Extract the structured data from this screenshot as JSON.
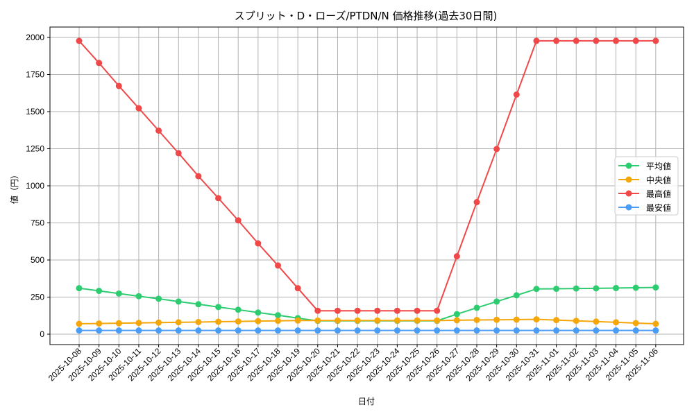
{
  "chart_data": {
    "type": "line",
    "title": "スプリット・D・ローズ/PTDN/N 価格推移(過去30日間)",
    "xlabel": "日付",
    "ylabel": "値（円）",
    "ylim": [
      -70,
      2070
    ],
    "yticks": [
      0,
      250,
      500,
      750,
      1000,
      1250,
      1500,
      1750,
      2000
    ],
    "grid": true,
    "legend_position": "center right",
    "categories": [
      "2025-10-08",
      "2025-10-09",
      "2025-10-10",
      "2025-10-11",
      "2025-10-12",
      "2025-10-13",
      "2025-10-14",
      "2025-10-15",
      "2025-10-16",
      "2025-10-17",
      "2025-10-18",
      "2025-10-19",
      "2025-10-20",
      "2025-10-21",
      "2025-10-22",
      "2025-10-23",
      "2025-10-24",
      "2025-10-25",
      "2025-10-26",
      "2025-10-27",
      "2025-10-28",
      "2025-10-29",
      "2025-10-30",
      "2025-10-31",
      "2025-11-01",
      "2025-11-02",
      "2025-11-03",
      "2025-11-04",
      "2025-11-05",
      "2025-11-06"
    ],
    "series": [
      {
        "name": "平均値",
        "color": "#2ecc71",
        "values": [
          310,
          292,
          274,
          256,
          239,
          220,
          202,
          183,
          165,
          146,
          128,
          108,
          90,
          90,
          90,
          90,
          90,
          90,
          90,
          135,
          178,
          220,
          262,
          305,
          306,
          308,
          309,
          311,
          313,
          315
        ]
      },
      {
        "name": "中央値",
        "color": "#f5a70a",
        "values": [
          70,
          72,
          74,
          76,
          78,
          80,
          82,
          84,
          86,
          88,
          90,
          92,
          92,
          92,
          92,
          92,
          92,
          92,
          92,
          94,
          96,
          97,
          98,
          100,
          95,
          90,
          85,
          80,
          75,
          70
        ]
      },
      {
        "name": "最高値",
        "color": "#f04848",
        "values": [
          1977,
          1828,
          1673,
          1523,
          1372,
          1220,
          1065,
          917,
          767,
          612,
          463,
          310,
          158,
          158,
          158,
          158,
          158,
          158,
          158,
          525,
          890,
          1248,
          1615,
          1977,
          1977,
          1977,
          1977,
          1977,
          1977,
          1977
        ]
      },
      {
        "name": "最安値",
        "color": "#4a9cf5",
        "values": [
          25,
          25,
          25,
          25,
          25,
          25,
          25,
          25,
          25,
          25,
          25,
          25,
          25,
          25,
          25,
          25,
          25,
          25,
          25,
          25,
          25,
          25,
          25,
          25,
          25,
          25,
          25,
          25,
          25,
          25
        ]
      }
    ]
  }
}
